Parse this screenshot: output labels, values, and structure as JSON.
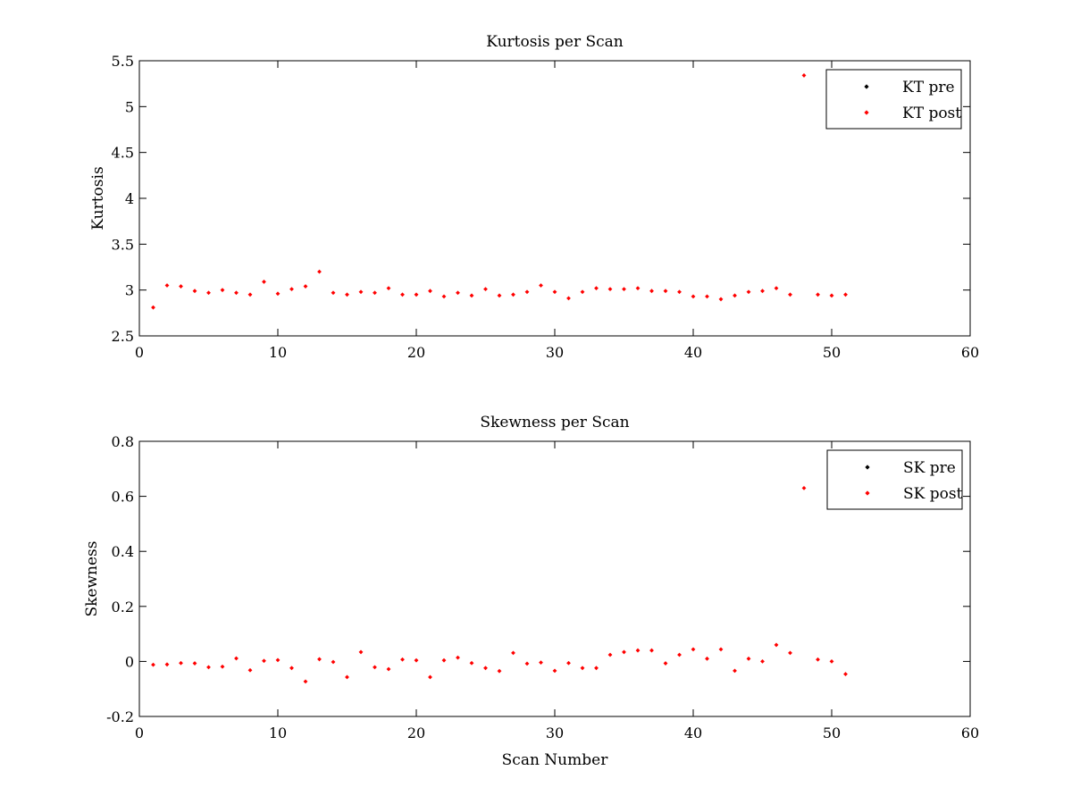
{
  "chart_data": [
    {
      "type": "scatter",
      "title": "Kurtosis per Scan",
      "xlabel": "",
      "ylabel": "Kurtosis",
      "xlim": [
        0,
        60
      ],
      "ylim": [
        2.5,
        5.5
      ],
      "xticks": [
        0,
        10,
        20,
        30,
        40,
        50,
        60
      ],
      "xtick_labels": [
        "0",
        "10",
        "20",
        "30",
        "40",
        "50",
        "60"
      ],
      "yticks": [
        2.5,
        3,
        3.5,
        4,
        4.5,
        5,
        5.5
      ],
      "ytick_labels": [
        "2.5",
        "3",
        "3.5",
        "4",
        "4.5",
        "5",
        "5.5"
      ],
      "grid": false,
      "legend": {
        "position": "top-right",
        "entries": [
          "KT pre",
          "KT post"
        ]
      },
      "series": [
        {
          "name": "KT pre",
          "color": "#000000",
          "x": [],
          "y": []
        },
        {
          "name": "KT post",
          "color": "#ff0000",
          "x": [
            1,
            2,
            3,
            4,
            5,
            6,
            7,
            8,
            9,
            10,
            11,
            12,
            13,
            14,
            15,
            16,
            17,
            18,
            19,
            20,
            21,
            22,
            23,
            24,
            25,
            26,
            27,
            28,
            29,
            30,
            31,
            32,
            33,
            34,
            35,
            36,
            37,
            38,
            39,
            40,
            41,
            42,
            43,
            44,
            45,
            46,
            47,
            48,
            49,
            50,
            51
          ],
          "y": [
            2.81,
            3.05,
            3.04,
            2.99,
            2.97,
            3.0,
            2.97,
            2.95,
            3.09,
            2.96,
            3.01,
            3.04,
            3.2,
            2.97,
            2.95,
            2.98,
            2.97,
            3.02,
            2.95,
            2.95,
            2.99,
            2.93,
            2.97,
            2.94,
            3.01,
            2.94,
            2.95,
            2.98,
            3.05,
            2.98,
            2.91,
            2.98,
            3.02,
            3.01,
            3.01,
            3.02,
            2.99,
            2.99,
            2.98,
            2.93,
            2.93,
            2.9,
            2.94,
            2.98,
            2.99,
            3.02,
            2.95,
            5.34,
            2.95,
            2.94,
            2.95
          ]
        }
      ]
    },
    {
      "type": "scatter",
      "title": "Skewness per Scan",
      "xlabel": "Scan Number",
      "ylabel": "Skewness",
      "xlim": [
        0,
        60
      ],
      "ylim": [
        -0.2,
        0.8
      ],
      "xticks": [
        0,
        10,
        20,
        30,
        40,
        50,
        60
      ],
      "xtick_labels": [
        "0",
        "10",
        "20",
        "30",
        "40",
        "50",
        "60"
      ],
      "yticks": [
        -0.2,
        0,
        0.2,
        0.4,
        0.6,
        0.8
      ],
      "ytick_labels": [
        "-0.2",
        "0",
        "0.2",
        "0.4",
        "0.6",
        "0.8"
      ],
      "grid": false,
      "legend": {
        "position": "top-right",
        "entries": [
          "SK pre",
          "SK post"
        ]
      },
      "series": [
        {
          "name": "SK pre",
          "color": "#000000",
          "x": [],
          "y": []
        },
        {
          "name": "SK post",
          "color": "#ff0000",
          "x": [
            1,
            2,
            3,
            4,
            5,
            6,
            7,
            8,
            9,
            10,
            11,
            12,
            13,
            14,
            15,
            16,
            17,
            18,
            19,
            20,
            21,
            22,
            23,
            24,
            25,
            26,
            27,
            28,
            29,
            30,
            31,
            32,
            33,
            34,
            35,
            36,
            37,
            38,
            39,
            40,
            41,
            42,
            43,
            44,
            45,
            46,
            47,
            48,
            49,
            50,
            51
          ],
          "y": [
            -0.012,
            -0.011,
            -0.006,
            -0.007,
            -0.021,
            -0.019,
            0.011,
            -0.032,
            0.002,
            0.005,
            -0.024,
            -0.073,
            0.008,
            -0.002,
            -0.057,
            0.034,
            -0.021,
            -0.028,
            0.007,
            0.004,
            -0.057,
            0.004,
            0.014,
            -0.006,
            -0.024,
            -0.035,
            0.031,
            -0.008,
            -0.004,
            -0.034,
            -0.006,
            -0.024,
            -0.024,
            0.024,
            0.034,
            0.04,
            0.04,
            -0.007,
            0.024,
            0.044,
            0.01,
            0.044,
            -0.034,
            0.01,
            0.0,
            0.06,
            0.031,
            0.63,
            0.007,
            0.0,
            -0.046
          ]
        }
      ]
    }
  ]
}
